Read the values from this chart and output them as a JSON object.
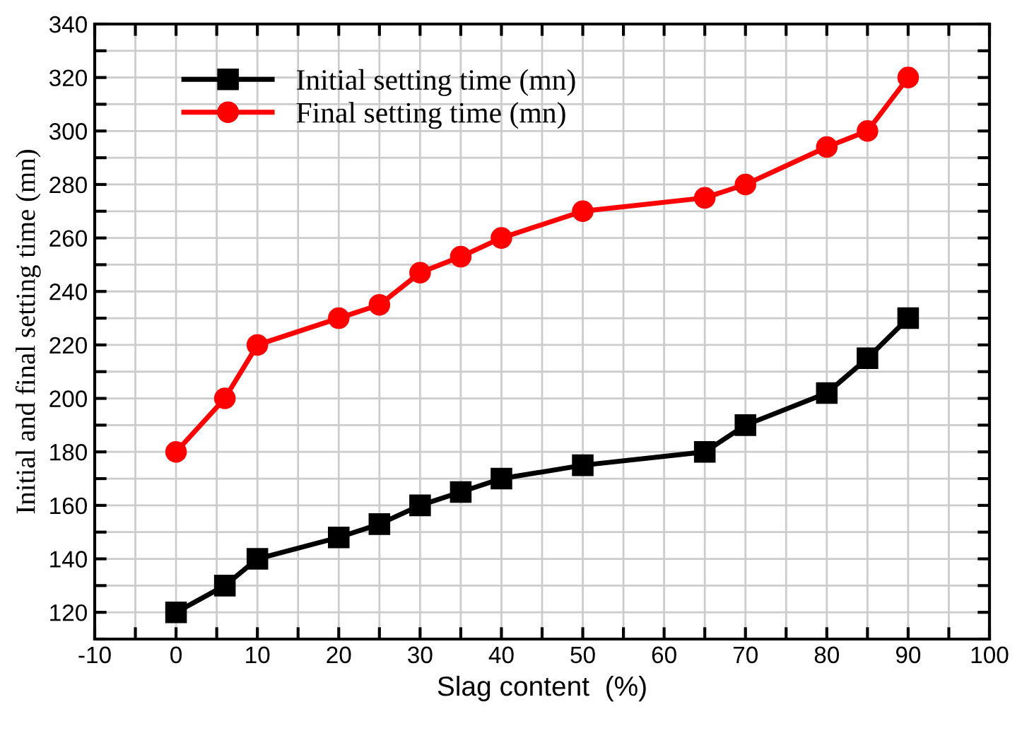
{
  "chart_data": {
    "type": "line",
    "xlabel": "Slag content  (%)",
    "ylabel": "Initial and final setting time (mn)",
    "x": [
      0,
      6,
      10,
      20,
      25,
      30,
      35,
      40,
      50,
      65,
      70,
      80,
      85,
      90
    ],
    "series": [
      {
        "name": "Initial setting time (mn)",
        "color": "#000000",
        "marker": "square",
        "values": [
          120,
          130,
          140,
          148,
          153,
          160,
          165,
          170,
          175,
          180,
          190,
          202,
          215,
          230
        ]
      },
      {
        "name": "Final setting time (mn)",
        "color": "#ff0000",
        "marker": "circle",
        "values": [
          180,
          200,
          220,
          230,
          235,
          247,
          253,
          260,
          270,
          275,
          280,
          294,
          300,
          320
        ]
      }
    ],
    "xlim": [
      -10,
      100
    ],
    "xticks": [
      -10,
      {
        "value": -5,
        "label": null
      },
      0,
      {
        "value": 5,
        "label": null
      },
      10,
      {
        "value": 15,
        "label": null
      },
      20,
      {
        "value": 25,
        "label": null
      },
      30,
      {
        "value": 35,
        "label": null
      },
      40,
      {
        "value": 45,
        "label": null
      },
      50,
      {
        "value": 55,
        "label": null
      },
      60,
      {
        "value": 65,
        "label": null
      },
      70,
      {
        "value": 75,
        "label": null
      },
      80,
      {
        "value": 85,
        "label": null
      },
      90,
      {
        "value": 95,
        "label": null
      },
      100
    ],
    "ylim": [
      110,
      340
    ],
    "yticks": [
      {
        "value": 110,
        "label": null
      },
      120,
      {
        "value": 130,
        "label": null
      },
      140,
      {
        "value": 150,
        "label": null
      },
      160,
      {
        "value": 170,
        "label": null
      },
      180,
      {
        "value": 190,
        "label": null
      },
      200,
      {
        "value": 210,
        "label": null
      },
      220,
      {
        "value": 230,
        "label": null
      },
      240,
      {
        "value": 250,
        "label": null
      },
      260,
      {
        "value": 270,
        "label": null
      },
      280,
      {
        "value": 290,
        "label": null
      },
      300,
      {
        "value": 310,
        "label": null
      },
      320,
      {
        "value": 330,
        "label": null
      },
      340
    ],
    "grid": true,
    "legend": "top left",
    "line_style": "solid"
  }
}
